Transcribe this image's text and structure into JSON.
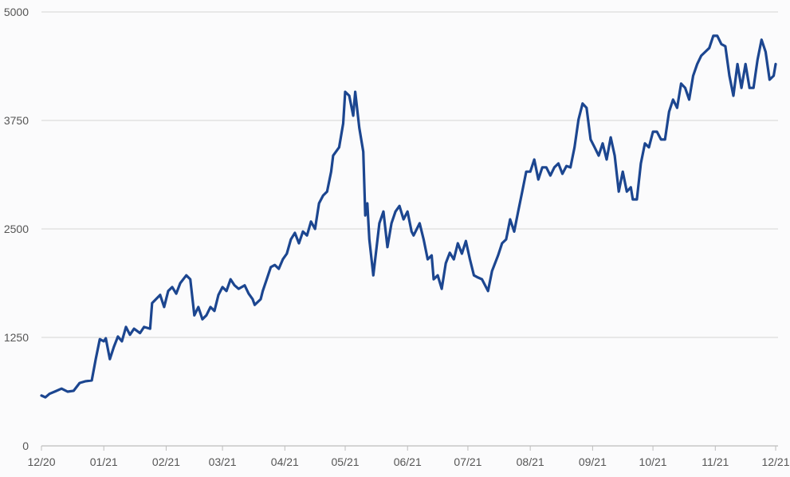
{
  "chart_data": {
    "type": "line",
    "title": "",
    "xlabel": "",
    "ylabel": "",
    "ylim": [
      0,
      5000
    ],
    "xlim": [
      "2020-12-01",
      "2021-12-01"
    ],
    "grid": "horizontal",
    "legend": "none",
    "line_color": "#1c4690",
    "y_ticks": [
      "0",
      "1250",
      "2500",
      "3750",
      "5000"
    ],
    "y_tick_values": [
      0,
      1250,
      2500,
      3750,
      5000
    ],
    "x_ticks": [
      "12/20",
      "01/21",
      "02/21",
      "03/21",
      "04/21",
      "05/21",
      "06/21",
      "07/21",
      "08/21",
      "09/21",
      "10/21",
      "11/21",
      "12/21"
    ],
    "x_tick_dates": [
      "2020-12-01",
      "2021-01-01",
      "2021-02-01",
      "2021-03-01",
      "2021-04-01",
      "2021-05-01",
      "2021-06-01",
      "2021-07-01",
      "2021-08-01",
      "2021-09-01",
      "2021-10-01",
      "2021-11-01",
      "2021-12-01"
    ],
    "series": [
      {
        "points": [
          [
            "2020-12-01",
            580
          ],
          [
            "2020-12-03",
            560
          ],
          [
            "2020-12-05",
            600
          ],
          [
            "2020-12-08",
            630
          ],
          [
            "2020-12-11",
            660
          ],
          [
            "2020-12-14",
            625
          ],
          [
            "2020-12-17",
            635
          ],
          [
            "2020-12-20",
            725
          ],
          [
            "2020-12-23",
            745
          ],
          [
            "2020-12-26",
            755
          ],
          [
            "2020-12-28",
            1000
          ],
          [
            "2020-12-30",
            1230
          ],
          [
            "2021-01-01",
            1205
          ],
          [
            "2021-01-02",
            1240
          ],
          [
            "2021-01-04",
            1000
          ],
          [
            "2021-01-06",
            1140
          ],
          [
            "2021-01-08",
            1260
          ],
          [
            "2021-01-10",
            1205
          ],
          [
            "2021-01-12",
            1370
          ],
          [
            "2021-01-14",
            1280
          ],
          [
            "2021-01-16",
            1350
          ],
          [
            "2021-01-19",
            1300
          ],
          [
            "2021-01-21",
            1370
          ],
          [
            "2021-01-24",
            1350
          ],
          [
            "2021-01-25",
            1645
          ],
          [
            "2021-01-29",
            1740
          ],
          [
            "2021-01-31",
            1600
          ],
          [
            "2021-02-02",
            1785
          ],
          [
            "2021-02-04",
            1830
          ],
          [
            "2021-02-06",
            1755
          ],
          [
            "2021-02-08",
            1875
          ],
          [
            "2021-02-11",
            1965
          ],
          [
            "2021-02-13",
            1920
          ],
          [
            "2021-02-15",
            1505
          ],
          [
            "2021-02-17",
            1600
          ],
          [
            "2021-02-19",
            1460
          ],
          [
            "2021-02-21",
            1505
          ],
          [
            "2021-02-23",
            1600
          ],
          [
            "2021-02-25",
            1555
          ],
          [
            "2021-02-27",
            1740
          ],
          [
            "2021-03-01",
            1830
          ],
          [
            "2021-03-03",
            1785
          ],
          [
            "2021-03-05",
            1920
          ],
          [
            "2021-03-07",
            1850
          ],
          [
            "2021-03-09",
            1810
          ],
          [
            "2021-03-12",
            1850
          ],
          [
            "2021-03-14",
            1755
          ],
          [
            "2021-03-16",
            1690
          ],
          [
            "2021-03-17",
            1625
          ],
          [
            "2021-03-20",
            1690
          ],
          [
            "2021-03-21",
            1785
          ],
          [
            "2021-03-23",
            1920
          ],
          [
            "2021-03-25",
            2060
          ],
          [
            "2021-03-27",
            2085
          ],
          [
            "2021-03-29",
            2040
          ],
          [
            "2021-03-31",
            2150
          ],
          [
            "2021-04-02",
            2215
          ],
          [
            "2021-04-04",
            2380
          ],
          [
            "2021-04-06",
            2455
          ],
          [
            "2021-04-08",
            2335
          ],
          [
            "2021-04-10",
            2470
          ],
          [
            "2021-04-12",
            2425
          ],
          [
            "2021-04-14",
            2585
          ],
          [
            "2021-04-16",
            2500
          ],
          [
            "2021-04-18",
            2795
          ],
          [
            "2021-04-20",
            2885
          ],
          [
            "2021-04-22",
            2930
          ],
          [
            "2021-04-24",
            3160
          ],
          [
            "2021-04-25",
            3345
          ],
          [
            "2021-04-28",
            3440
          ],
          [
            "2021-04-30",
            3715
          ],
          [
            "2021-05-01",
            4080
          ],
          [
            "2021-05-03",
            4035
          ],
          [
            "2021-05-05",
            3805
          ],
          [
            "2021-05-06",
            4080
          ],
          [
            "2021-05-08",
            3665
          ],
          [
            "2021-05-10",
            3390
          ],
          [
            "2021-05-11",
            2655
          ],
          [
            "2021-05-12",
            2795
          ],
          [
            "2021-05-13",
            2380
          ],
          [
            "2021-05-15",
            1965
          ],
          [
            "2021-05-18",
            2565
          ],
          [
            "2021-05-20",
            2700
          ],
          [
            "2021-05-22",
            2290
          ],
          [
            "2021-05-24",
            2565
          ],
          [
            "2021-05-26",
            2700
          ],
          [
            "2021-05-28",
            2765
          ],
          [
            "2021-05-30",
            2610
          ],
          [
            "2021-06-01",
            2700
          ],
          [
            "2021-06-03",
            2470
          ],
          [
            "2021-06-04",
            2425
          ],
          [
            "2021-06-07",
            2565
          ],
          [
            "2021-06-09",
            2380
          ],
          [
            "2021-06-11",
            2150
          ],
          [
            "2021-06-13",
            2195
          ],
          [
            "2021-06-14",
            1920
          ],
          [
            "2021-06-16",
            1965
          ],
          [
            "2021-06-18",
            1810
          ],
          [
            "2021-06-20",
            2105
          ],
          [
            "2021-06-22",
            2225
          ],
          [
            "2021-06-24",
            2150
          ],
          [
            "2021-06-26",
            2335
          ],
          [
            "2021-06-28",
            2215
          ],
          [
            "2021-06-30",
            2360
          ],
          [
            "2021-07-02",
            2150
          ],
          [
            "2021-07-04",
            1965
          ],
          [
            "2021-07-06",
            1940
          ],
          [
            "2021-07-08",
            1920
          ],
          [
            "2021-07-11",
            1785
          ],
          [
            "2021-07-13",
            2015
          ],
          [
            "2021-07-16",
            2195
          ],
          [
            "2021-07-18",
            2335
          ],
          [
            "2021-07-20",
            2380
          ],
          [
            "2021-07-22",
            2610
          ],
          [
            "2021-07-24",
            2470
          ],
          [
            "2021-07-26",
            2700
          ],
          [
            "2021-07-28",
            2930
          ],
          [
            "2021-07-30",
            3160
          ],
          [
            "2021-08-01",
            3160
          ],
          [
            "2021-08-03",
            3300
          ],
          [
            "2021-08-05",
            3070
          ],
          [
            "2021-08-07",
            3210
          ],
          [
            "2021-08-09",
            3210
          ],
          [
            "2021-08-11",
            3115
          ],
          [
            "2021-08-13",
            3210
          ],
          [
            "2021-08-15",
            3255
          ],
          [
            "2021-08-17",
            3135
          ],
          [
            "2021-08-19",
            3225
          ],
          [
            "2021-08-21",
            3210
          ],
          [
            "2021-08-23",
            3440
          ],
          [
            "2021-08-25",
            3760
          ],
          [
            "2021-08-27",
            3945
          ],
          [
            "2021-08-29",
            3895
          ],
          [
            "2021-08-31",
            3530
          ],
          [
            "2021-09-02",
            3440
          ],
          [
            "2021-09-04",
            3345
          ],
          [
            "2021-09-06",
            3485
          ],
          [
            "2021-09-08",
            3300
          ],
          [
            "2021-09-10",
            3555
          ],
          [
            "2021-09-12",
            3345
          ],
          [
            "2021-09-14",
            2930
          ],
          [
            "2021-09-16",
            3160
          ],
          [
            "2021-09-18",
            2930
          ],
          [
            "2021-09-20",
            2980
          ],
          [
            "2021-09-21",
            2840
          ],
          [
            "2021-09-23",
            2840
          ],
          [
            "2021-09-25",
            3255
          ],
          [
            "2021-09-27",
            3485
          ],
          [
            "2021-09-29",
            3440
          ],
          [
            "2021-10-01",
            3620
          ],
          [
            "2021-10-03",
            3620
          ],
          [
            "2021-10-05",
            3530
          ],
          [
            "2021-10-07",
            3530
          ],
          [
            "2021-10-09",
            3850
          ],
          [
            "2021-10-11",
            3990
          ],
          [
            "2021-10-13",
            3895
          ],
          [
            "2021-10-15",
            4175
          ],
          [
            "2021-10-17",
            4125
          ],
          [
            "2021-10-19",
            3990
          ],
          [
            "2021-10-21",
            4265
          ],
          [
            "2021-10-23",
            4400
          ],
          [
            "2021-10-25",
            4495
          ],
          [
            "2021-10-27",
            4540
          ],
          [
            "2021-10-29",
            4585
          ],
          [
            "2021-10-31",
            4725
          ],
          [
            "2021-11-02",
            4725
          ],
          [
            "2021-11-04",
            4630
          ],
          [
            "2021-11-06",
            4605
          ],
          [
            "2021-11-08",
            4265
          ],
          [
            "2021-11-10",
            4035
          ],
          [
            "2021-11-12",
            4400
          ],
          [
            "2021-11-14",
            4125
          ],
          [
            "2021-11-16",
            4400
          ],
          [
            "2021-11-18",
            4125
          ],
          [
            "2021-11-20",
            4125
          ],
          [
            "2021-11-22",
            4450
          ],
          [
            "2021-11-24",
            4680
          ],
          [
            "2021-11-26",
            4540
          ],
          [
            "2021-11-28",
            4220
          ],
          [
            "2021-11-30",
            4265
          ],
          [
            "2021-12-01",
            4400
          ]
        ]
      }
    ]
  }
}
